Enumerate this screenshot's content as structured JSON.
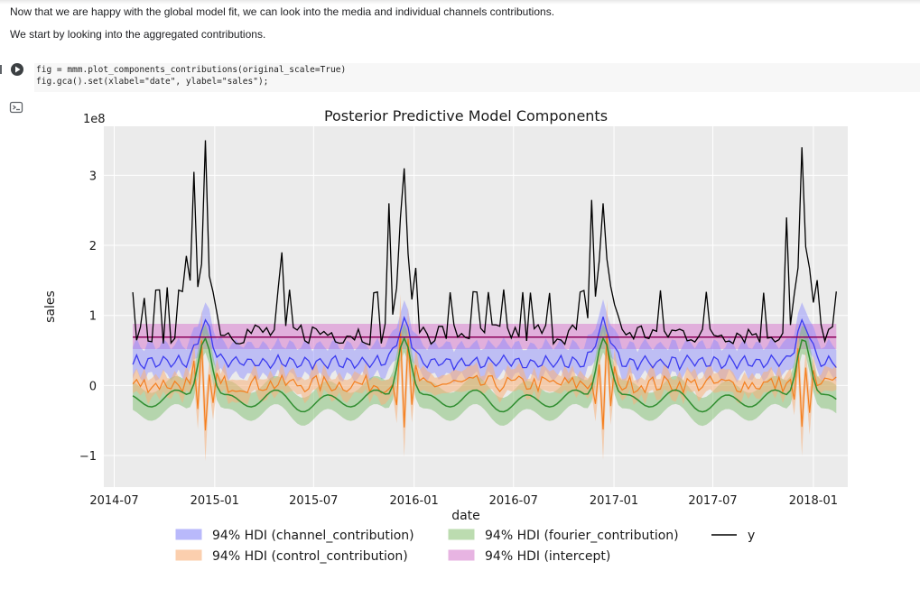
{
  "notebook": {
    "markdown_1": "Now that we are happy with the global model fit, we can look into the media and individual channels contributions.",
    "markdown_2": "We start by looking into the aggregated contributions.",
    "code_line_1": "fig = mmm.plot_components_contributions(original_scale=True)",
    "code_line_2": "fig.gca().set(xlabel=\"date\", ylabel=\"sales\");",
    "run_icon": "play-icon",
    "output_icon": "output-toggle-icon"
  },
  "chart_data": {
    "type": "line",
    "title": "Posterior Predictive Model Components",
    "xlabel": "date",
    "ylabel": "sales",
    "y_offset_label": "1e8",
    "y_unit": "1e8",
    "ylim": [
      -1.45,
      3.7
    ],
    "xlim": [
      "2014-06-12",
      "2018-03-05"
    ],
    "yticks": [
      -1,
      0,
      1,
      2,
      3
    ],
    "ytick_labels": [
      "−1",
      "0",
      "1",
      "2",
      "3"
    ],
    "xticks": [
      "2014-07-01",
      "2015-01-01",
      "2015-07-01",
      "2016-01-01",
      "2016-07-01",
      "2017-01-01",
      "2017-07-01",
      "2018-01-01"
    ],
    "xtick_labels": [
      "2014-07",
      "2015-01",
      "2015-07",
      "2016-01",
      "2016-07",
      "2017-01",
      "2017-07",
      "2018-01"
    ],
    "grid": true,
    "legend_position": "bottom",
    "colors": {
      "channel": "#3b3bf0",
      "control": "#f47f1e",
      "fourier": "#2f8d2f",
      "intercept": "#8b0059",
      "y": "#000000",
      "plot_bg": "#ebebeb"
    },
    "legend": [
      {
        "key": "channel",
        "label": "94% HDI (channel_contribution)"
      },
      {
        "key": "fourier",
        "label": "94% HDI (fourier_contribution)"
      },
      {
        "key": "y",
        "label": "y"
      },
      {
        "key": "control",
        "label": "94% HDI (control_contribution)"
      },
      {
        "key": "intercept",
        "label": "94% HDI (intercept)"
      }
    ],
    "y_peaks": [
      {
        "date": "2014-08-25",
        "value": 1.25
      },
      {
        "date": "2014-10-06",
        "value": 1.4
      },
      {
        "date": "2014-11-10",
        "value": 1.85
      },
      {
        "date": "2014-11-24",
        "value": 3.05
      },
      {
        "date": "2014-12-15",
        "value": 3.5
      },
      {
        "date": "2015-05-04",
        "value": 1.9
      },
      {
        "date": "2015-11-16",
        "value": 2.6
      },
      {
        "date": "2015-12-14",
        "value": 3.1
      },
      {
        "date": "2016-11-21",
        "value": 2.65
      },
      {
        "date": "2016-12-12",
        "value": 2.6
      },
      {
        "date": "2017-11-13",
        "value": 2.4
      },
      {
        "date": "2017-12-11",
        "value": 3.4
      }
    ],
    "y_baseline": 0.72,
    "intercept_mean": 0.69,
    "intercept_hdi": [
      0.52,
      0.88
    ],
    "channel_mean_range": [
      0.3,
      1.0
    ],
    "fourier_mean_range": [
      -0.25,
      0.85
    ],
    "control_range": [
      -0.85,
      0.5
    ]
  }
}
